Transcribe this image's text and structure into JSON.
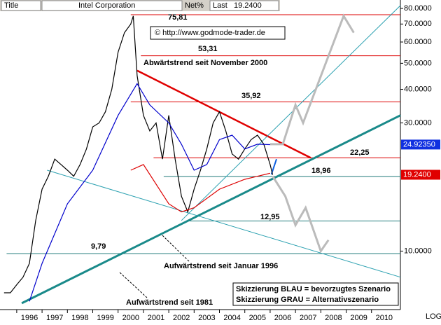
{
  "chart_data": {
    "type": "line",
    "header": {
      "title": "Title",
      "name": "Intel Corporation",
      "field": "Net%",
      "last_label": "Last",
      "last": "19.2400"
    },
    "log": true,
    "scale_label": "LOG",
    "xlim": [
      1995.34,
      2011.14
    ],
    "xticks": [
      1996,
      1997,
      1998,
      1999,
      2000,
      2001,
      2002,
      2003,
      2004,
      2005,
      2006,
      2007,
      2008,
      2009,
      2010
    ],
    "ylim": [
      6.06,
      86
    ],
    "yticks": [
      {
        "value": 80,
        "label": "80.0000"
      },
      {
        "value": 70,
        "label": "70.0000"
      },
      {
        "value": 60,
        "label": "60.0000"
      },
      {
        "value": 50,
        "label": "50.0000"
      },
      {
        "value": 40,
        "label": "40.0000"
      },
      {
        "value": 30,
        "label": "30.0000"
      },
      {
        "value": 10,
        "label": "10.0000"
      }
    ],
    "series": [
      {
        "color": "#000000",
        "x": [
          1995.5,
          1995.75,
          1996.0,
          1996.25,
          1996.5,
          1996.75,
          1997.0,
          1997.25,
          1997.5,
          1997.75,
          1998.0,
          1998.25,
          1998.5,
          1998.75,
          1999.0,
          1999.25,
          1999.5,
          1999.75,
          2000.0,
          2000.25,
          2000.5,
          2000.6,
          2000.75,
          2001.0,
          2001.25,
          2001.5,
          2001.75,
          2002.0,
          2002.25,
          2002.5,
          2002.75,
          2003.0,
          2003.25,
          2003.5,
          2003.75,
          2004.0,
          2004.25,
          2004.5,
          2004.75,
          2005.0,
          2005.25,
          2005.5,
          2005.75,
          2006.0,
          2006.1
        ],
        "values": [
          7,
          7,
          7.5,
          8,
          9,
          13,
          17,
          19,
          22,
          21,
          20,
          19,
          21,
          24,
          29,
          30,
          33,
          40,
          55,
          65,
          70,
          75,
          45,
          32,
          28,
          30,
          22,
          32,
          22,
          16,
          14,
          17,
          20,
          24,
          30,
          33,
          28,
          23,
          22,
          24,
          26,
          27,
          25,
          21,
          19.24
        ]
      },
      {
        "color": "#0000cc",
        "x": [
          1996.5,
          1997.0,
          1998.0,
          1999.0,
          2000.0,
          2000.75,
          2001.25,
          2002.0,
          2002.5,
          2003.0,
          2003.5,
          2004.0,
          2004.5,
          2005.0,
          2005.5,
          2006.0
        ],
        "values": [
          6.5,
          9,
          15,
          20,
          32,
          42,
          35,
          30,
          25,
          20,
          21,
          26,
          27,
          24,
          25,
          24.9
        ]
      },
      {
        "color": "#dd0000",
        "x": [
          2000.5,
          2001.0,
          2002.0,
          2002.5,
          2003.0,
          2004.0,
          2005.0,
          2006.0
        ],
        "values": [
          20,
          21,
          15,
          14,
          14.5,
          17,
          18.5,
          19.5
        ]
      }
    ],
    "levels": [
      {
        "value": 75.81,
        "label": "75,81",
        "color": "#dd0000",
        "from": 2000.5
      },
      {
        "value": 53.31,
        "label": "53,31",
        "color": "#dd0000",
        "from": 2000.9
      },
      {
        "value": 35.92,
        "label": "35,92",
        "color": "#dd0000",
        "from": 2000.5
      },
      {
        "value": 22.25,
        "label": "22,25",
        "color": "#dd0000",
        "from": 2001.4
      },
      {
        "value": 18.96,
        "label": "18,96",
        "color": "#1f7a7a",
        "from": 2001.8
      },
      {
        "value": 12.95,
        "label": "12,95",
        "color": "#1f7a7a",
        "from": 2002.8
      },
      {
        "value": 9.79,
        "label": "9,79",
        "color": "#1f7a7a",
        "from": 1995.6
      }
    ],
    "trendlines": [
      {
        "color": "#e00000",
        "width": 2.5,
        "x": [
          2000.75,
          2007.6
        ],
        "y": [
          47,
          22.25
        ]
      },
      {
        "color": "#1a8a8a",
        "width": 3,
        "x": [
          1996.2,
          2011.14
        ],
        "y": [
          6.4,
          32
        ]
      },
      {
        "color": "#2aa0b0",
        "width": 1,
        "x": [
          2002.5,
          2011.14
        ],
        "y": [
          13,
          82
        ]
      },
      {
        "color": "#2aa0b0",
        "width": 1,
        "x": [
          1997.2,
          2011.14
        ],
        "y": [
          20,
          8
        ]
      },
      {
        "color": "#bbbbbb",
        "width": 3,
        "x": [
          2006.0,
          2006.5,
          2007.0,
          2007.3,
          2008.9,
          2009.3
        ],
        "y": [
          25,
          25,
          35,
          30,
          75,
          65
        ]
      },
      {
        "color": "#bbbbbb",
        "width": 3,
        "x": [
          2006.1,
          2006.6,
          2007.0,
          2007.4,
          2008.0,
          2008.3
        ],
        "y": [
          19,
          16,
          12.5,
          14.5,
          10,
          11
        ]
      },
      {
        "color": "#1060e0",
        "width": 2,
        "x": [
          2006.05,
          2006.25
        ],
        "y": [
          19.3,
          22
        ]
      }
    ],
    "price_labels": [
      {
        "value": 24.9235,
        "label": "24.92350",
        "color": "#1030e0"
      },
      {
        "value": 19.24,
        "label": "19.2400",
        "color": "#e00000"
      }
    ],
    "annotations": {
      "copyright": "© http://www.godmode-trader.de",
      "down": "Abwärtstrend seit November 2000",
      "up1996": "Aufwärtstrend seit Januar 1996",
      "up1981": "Aufwärtstrend seit 1981",
      "legend_blue": "Skizzierung BLAU = bevorzugtes Szenario",
      "legend_gray": "Skizzierung GRAU = Alternativszenario"
    }
  }
}
